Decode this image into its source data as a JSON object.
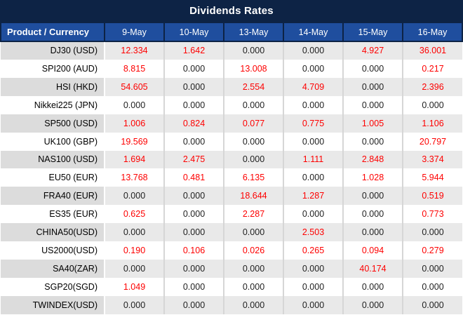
{
  "title": "Dividends Rates",
  "colors": {
    "title_bg": "#0d2345",
    "header_bg": "#1f4e9e",
    "header_border": "#0d2345",
    "row_alt_bg": "#e9e9e9",
    "row_alt_product_bg": "#dcdcdc",
    "value_nonzero": "#fe0000",
    "value_zero": "#212121"
  },
  "table": {
    "product_header": "Product / Currency",
    "date_columns": [
      "9-May",
      "10-May",
      "13-May",
      "14-May",
      "15-May",
      "16-May"
    ],
    "rows": [
      {
        "product": "DJ30 (USD)",
        "values": [
          "12.334",
          "1.642",
          "0.000",
          "0.000",
          "4.927",
          "36.001"
        ]
      },
      {
        "product": "SPI200 (AUD)",
        "values": [
          "8.815",
          "0.000",
          "13.008",
          "0.000",
          "0.000",
          "0.217"
        ]
      },
      {
        "product": "HSI (HKD)",
        "values": [
          "54.605",
          "0.000",
          "2.554",
          "4.709",
          "0.000",
          "2.396"
        ]
      },
      {
        "product": "Nikkei225 (JPN)",
        "values": [
          "0.000",
          "0.000",
          "0.000",
          "0.000",
          "0.000",
          "0.000"
        ]
      },
      {
        "product": "SP500 (USD)",
        "values": [
          "1.006",
          "0.824",
          "0.077",
          "0.775",
          "1.005",
          "1.106"
        ]
      },
      {
        "product": "UK100 (GBP)",
        "values": [
          "19.569",
          "0.000",
          "0.000",
          "0.000",
          "0.000",
          "20.797"
        ]
      },
      {
        "product": "NAS100 (USD)",
        "values": [
          "1.694",
          "2.475",
          "0.000",
          "1.111",
          "2.848",
          "3.374"
        ]
      },
      {
        "product": "EU50 (EUR)",
        "values": [
          "13.768",
          "0.481",
          "6.135",
          "0.000",
          "1.028",
          "5.944"
        ]
      },
      {
        "product": "FRA40 (EUR)",
        "values": [
          "0.000",
          "0.000",
          "18.644",
          "1.287",
          "0.000",
          "0.519"
        ]
      },
      {
        "product": "ES35 (EUR)",
        "values": [
          "0.625",
          "0.000",
          "2.287",
          "0.000",
          "0.000",
          "0.773"
        ]
      },
      {
        "product": "CHINA50(USD)",
        "values": [
          "0.000",
          "0.000",
          "0.000",
          "2.503",
          "0.000",
          "0.000"
        ]
      },
      {
        "product": "US2000(USD)",
        "values": [
          "0.190",
          "0.106",
          "0.026",
          "0.265",
          "0.094",
          "0.279"
        ]
      },
      {
        "product": "SA40(ZAR)",
        "values": [
          "0.000",
          "0.000",
          "0.000",
          "0.000",
          "40.174",
          "0.000"
        ]
      },
      {
        "product": "SGP20(SGD)",
        "values": [
          "1.049",
          "0.000",
          "0.000",
          "0.000",
          "0.000",
          "0.000"
        ]
      },
      {
        "product": "TWINDEX(USD)",
        "values": [
          "0.000",
          "0.000",
          "0.000",
          "0.000",
          "0.000",
          "0.000"
        ]
      }
    ]
  }
}
